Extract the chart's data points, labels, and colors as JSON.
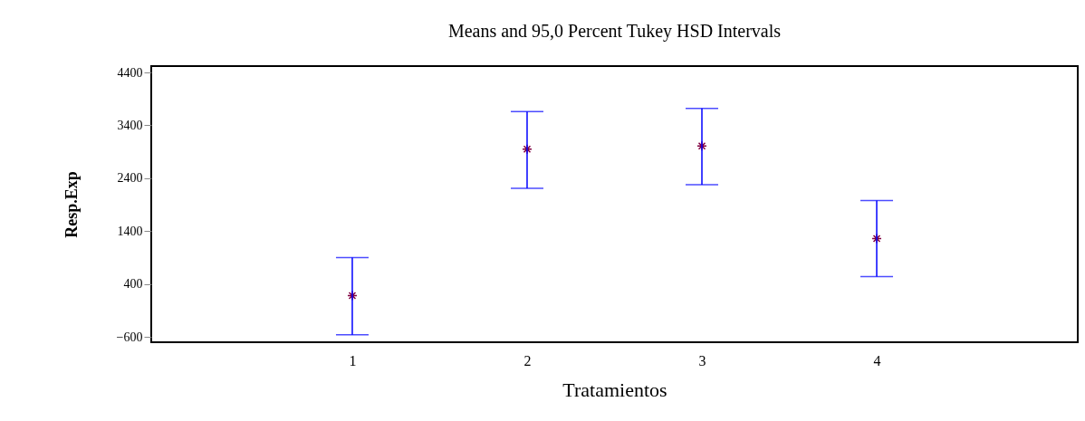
{
  "chart_data": {
    "type": "scatter",
    "title": "Means and 95,0 Percent Tukey HSD Intervals",
    "xlabel": "Tratamientos",
    "ylabel": "Resp.Exp",
    "x": [
      1,
      2,
      3,
      4
    ],
    "series": [
      {
        "color": "#800040",
        "values": [
          180,
          2950,
          3010,
          1260
        ],
        "errors": [
          [
            -560,
            900
          ],
          [
            2210,
            3660
          ],
          [
            2280,
            3720
          ],
          [
            540,
            1980
          ]
        ]
      }
    ],
    "xlim": [
      -0.15,
      5.15
    ],
    "xticks": [
      1,
      2,
      3,
      4
    ],
    "ylim": [
      -700,
      4520
    ],
    "yticks": [
      -600,
      400,
      1400,
      2400,
      3400,
      4400
    ],
    "grid": false,
    "marker": "cross"
  }
}
